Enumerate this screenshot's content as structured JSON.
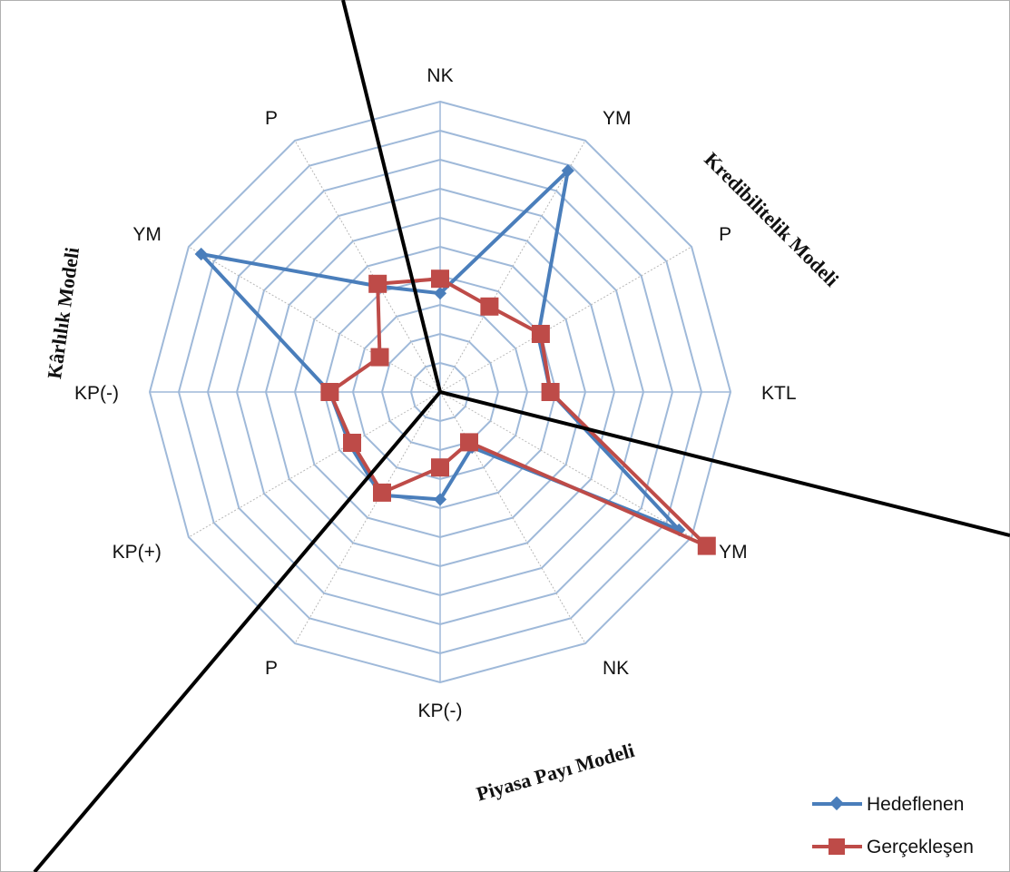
{
  "chart_data": {
    "type": "radar",
    "axes": [
      "NK",
      "YM",
      "P",
      "KTL",
      "YM",
      "NK",
      "KP(-)",
      "P",
      "KP(+)",
      "KP(-)",
      "YM",
      "P"
    ],
    "rlim": [
      0,
      10
    ],
    "rings": 10,
    "grid": true,
    "legend_position": "bottom-right",
    "series": [
      {
        "name": "Hedeflenen",
        "color": "#4a7ebb",
        "marker": "diamond",
        "values": [
          3.4,
          8.8,
          3.9,
          3.8,
          9.5,
          2.2,
          3.7,
          4.1,
          3.6,
          3.8,
          9.5,
          4.2
        ]
      },
      {
        "name": "Gerçekleşen",
        "color": "#be4b48",
        "marker": "square",
        "values": [
          3.9,
          3.4,
          4.0,
          3.8,
          10.6,
          2.0,
          2.6,
          4.0,
          3.5,
          3.8,
          2.4,
          4.3
        ]
      }
    ],
    "model_labels": [
      "Kredibilitelik Modeli",
      "Piyasa Payı Modeli",
      "Kârlılık Modeli"
    ]
  },
  "colors": {
    "grid": "#9fb9d9",
    "spoke": "#b8b8b8",
    "divider": "#000000"
  }
}
